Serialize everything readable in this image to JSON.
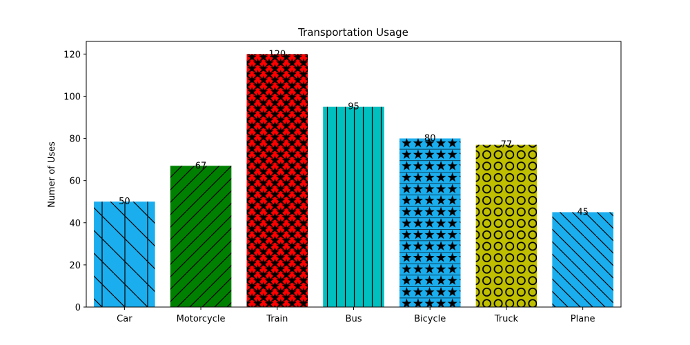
{
  "chart_data": {
    "type": "bar",
    "title": "Transportation Usage",
    "xlabel": "",
    "ylabel": "Numer of Uses",
    "ylim": [
      0,
      126
    ],
    "yticks": [
      0,
      20,
      40,
      60,
      80,
      100,
      120
    ],
    "grid": false,
    "categories": [
      "Car",
      "Motorcycle",
      "Train",
      "Bus",
      "Bicycle",
      "Truck",
      "Plane"
    ],
    "values": [
      50,
      67,
      120,
      95,
      80,
      77,
      45
    ],
    "colors": [
      "#1aaeee",
      "#008000",
      "#ff0000",
      "#00bfbf",
      "#1aaeee",
      "#bfbf00",
      "#1aaeee"
    ],
    "hatches": [
      "grid-diagonal",
      "forward-diagonal",
      "stars-diamond",
      "vertical",
      "stars-horizontal",
      "circles",
      "back-diagonal"
    ],
    "data_labels": [
      "50",
      "67",
      "120",
      "95",
      "80",
      "77",
      "45"
    ]
  }
}
